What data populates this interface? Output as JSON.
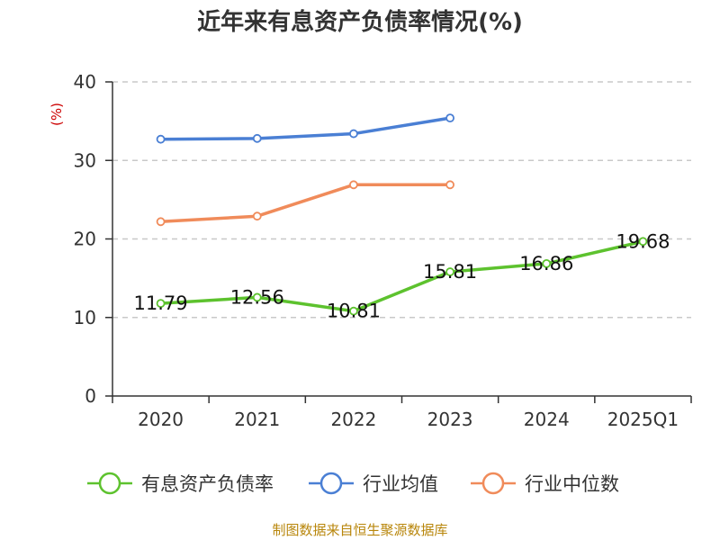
{
  "chart_data": {
    "type": "line",
    "title": "近年来有息资产负债率情况(%)",
    "ylabel": "(%)",
    "xlabel": "",
    "categories": [
      "2020",
      "2021",
      "2022",
      "2023",
      "2024",
      "2025Q1"
    ],
    "ylim": [
      0,
      40
    ],
    "yticks": [
      "0",
      "10",
      "20",
      "30",
      "40"
    ],
    "grid": true,
    "legend_position": "bottom",
    "series": [
      {
        "name": "有息资产负债率",
        "color": "#5dc22e",
        "values": [
          11.79,
          12.56,
          10.81,
          15.81,
          16.86,
          19.68
        ],
        "data_labels": [
          "11.79",
          "12.56",
          "10.81",
          "15.81",
          "16.86",
          "19.68"
        ]
      },
      {
        "name": "行业均值",
        "color": "#4a7fd4",
        "values": [
          32.7,
          32.8,
          33.4,
          35.4,
          null,
          null
        ]
      },
      {
        "name": "行业中位数",
        "color": "#f08b5a",
        "values": [
          22.2,
          22.9,
          26.9,
          26.9,
          null,
          null
        ]
      }
    ]
  },
  "source": "制图数据来自恒生聚源数据库"
}
